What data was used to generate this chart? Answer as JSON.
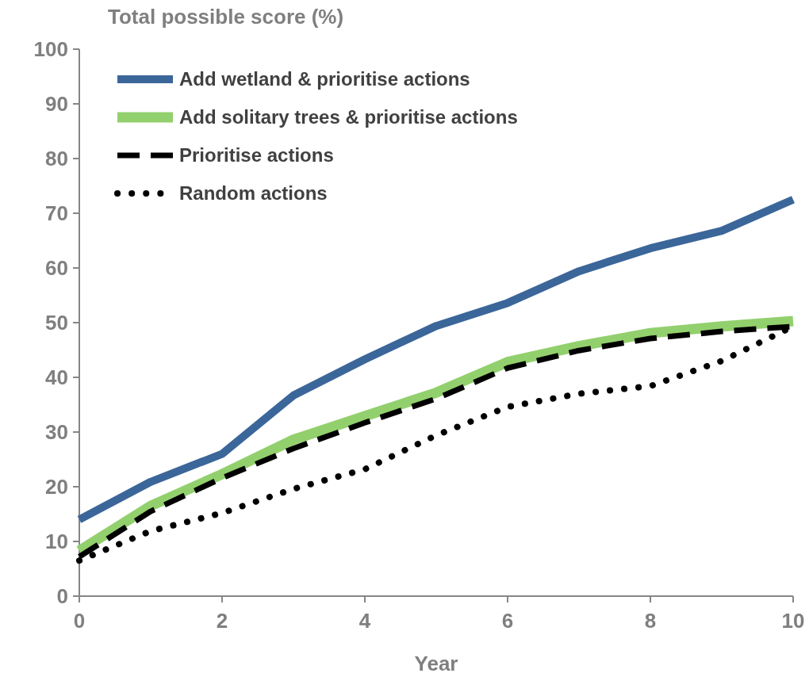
{
  "chart_data": {
    "type": "line",
    "xlabel": "Year",
    "ylabel": "Total possible score (%)",
    "x": [
      0,
      1,
      2,
      3,
      4,
      5,
      6,
      7,
      8,
      9,
      10
    ],
    "xlim": [
      0,
      10
    ],
    "xticks": [
      0,
      2,
      4,
      6,
      8,
      10
    ],
    "ylim": [
      0,
      100
    ],
    "yticks": [
      0,
      10,
      20,
      30,
      40,
      50,
      60,
      70,
      80,
      90,
      100
    ],
    "grid": false,
    "legend": "top left",
    "series": [
      {
        "name": "Add wetland & prioritise actions",
        "color": "#3b6699",
        "line_style": "solid",
        "values": [
          14,
          20.9,
          26,
          36.7,
          43.3,
          49.4,
          53.6,
          59.4,
          63.6,
          66.8,
          72.5
        ]
      },
      {
        "name": "Add solitary trees & prioritise actions",
        "color": "#92d06d",
        "line_style": "solid",
        "values": [
          8.3,
          16.5,
          22.3,
          28.6,
          32.9,
          37.2,
          42.8,
          45.7,
          48.1,
          49.3,
          50.3
        ]
      },
      {
        "name": "Prioritise actions",
        "color": "#000000",
        "line_style": "dashed",
        "values": [
          7.2,
          15.5,
          21.6,
          27,
          31.7,
          36.1,
          41.7,
          44.9,
          47.1,
          48.4,
          49.3
        ]
      },
      {
        "name": "Random actions",
        "color": "#000000",
        "line_style": "dotted",
        "values": [
          6.5,
          11.9,
          15.2,
          19.6,
          23.2,
          29.4,
          34.6,
          37,
          38.4,
          43,
          49.3
        ]
      }
    ]
  }
}
